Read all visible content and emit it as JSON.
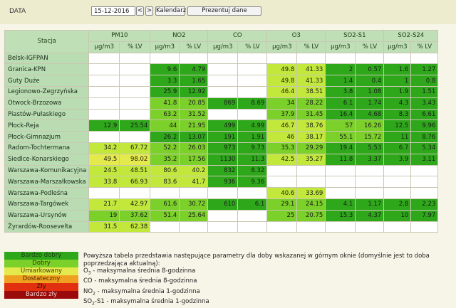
{
  "toolbar": {
    "label": "DATA",
    "date_value": "15-12-2016",
    "prev": "<",
    "next": ">",
    "calendar": "Kalendarz",
    "show": "Prezentuj dane"
  },
  "table": {
    "station_header": "Stacja",
    "pollutants": [
      "PM10",
      "NO2",
      "CO",
      "O3",
      "SO2-S1",
      "SO2-S24"
    ],
    "units": [
      "µg/m3",
      "% LV",
      "µg/m3",
      "% LV",
      "µg/m3",
      "% LV",
      "µg/m3",
      "% LV",
      "µg/m3",
      "% LV",
      "µg/m3",
      "% LV"
    ],
    "rows": [
      {
        "name": "Belsk-IGFPAN",
        "cells": [
          [
            "",
            "e"
          ],
          [
            "",
            "e"
          ],
          [
            "",
            "e"
          ],
          [
            "",
            "e"
          ],
          [
            "",
            "e"
          ],
          [
            "",
            "e"
          ],
          [
            "",
            "e"
          ],
          [
            "",
            "e"
          ],
          [
            "",
            "e"
          ],
          [
            "",
            "e"
          ],
          [
            "",
            "e"
          ],
          [
            "",
            "e"
          ]
        ]
      },
      {
        "name": "Granica-KPN",
        "cells": [
          [
            "",
            "e"
          ],
          [
            "",
            "e"
          ],
          [
            "9.6",
            "vg"
          ],
          [
            "4.79",
            "vg"
          ],
          [
            "",
            "e"
          ],
          [
            "",
            "e"
          ],
          [
            "49.8",
            "m"
          ],
          [
            "41.33",
            "m"
          ],
          [
            "2",
            "vg"
          ],
          [
            "0.57",
            "vg"
          ],
          [
            "1.6",
            "vg"
          ],
          [
            "1.27",
            "vg"
          ]
        ]
      },
      {
        "name": "Guty Duże",
        "cells": [
          [
            "",
            "e"
          ],
          [
            "",
            "e"
          ],
          [
            "3.3",
            "vg"
          ],
          [
            "1.65",
            "vg"
          ],
          [
            "",
            "e"
          ],
          [
            "",
            "e"
          ],
          [
            "49.8",
            "m"
          ],
          [
            "41.33",
            "m"
          ],
          [
            "1.4",
            "vg"
          ],
          [
            "0.4",
            "vg"
          ],
          [
            "1",
            "vg"
          ],
          [
            "0.8",
            "vg"
          ]
        ]
      },
      {
        "name": "Legionowo-Zegrzyńska",
        "cells": [
          [
            "",
            "e"
          ],
          [
            "",
            "e"
          ],
          [
            "25.9",
            "vg"
          ],
          [
            "12.92",
            "vg"
          ],
          [
            "",
            "e"
          ],
          [
            "",
            "e"
          ],
          [
            "46.4",
            "m"
          ],
          [
            "38.51",
            "m"
          ],
          [
            "3.8",
            "vg"
          ],
          [
            "1.08",
            "vg"
          ],
          [
            "1.9",
            "vg"
          ],
          [
            "1.51",
            "vg"
          ]
        ]
      },
      {
        "name": "Otwock-Brzozowa",
        "cells": [
          [
            "",
            "e"
          ],
          [
            "",
            "e"
          ],
          [
            "41.8",
            "g"
          ],
          [
            "20.85",
            "g"
          ],
          [
            "869",
            "vg"
          ],
          [
            "8.69",
            "vg"
          ],
          [
            "34",
            "g"
          ],
          [
            "28.22",
            "g"
          ],
          [
            "6.1",
            "vg"
          ],
          [
            "1.74",
            "vg"
          ],
          [
            "4.3",
            "vg"
          ],
          [
            "3.43",
            "vg"
          ]
        ]
      },
      {
        "name": "Piastów-Pułaskiego",
        "cells": [
          [
            "",
            "e"
          ],
          [
            "",
            "e"
          ],
          [
            "63.2",
            "g"
          ],
          [
            "31.52",
            "g"
          ],
          [
            "",
            "e"
          ],
          [
            "",
            "e"
          ],
          [
            "37.9",
            "g"
          ],
          [
            "31.45",
            "g"
          ],
          [
            "16.4",
            "vg"
          ],
          [
            "4.68",
            "vg"
          ],
          [
            "8.3",
            "vg"
          ],
          [
            "6.61",
            "vg"
          ]
        ]
      },
      {
        "name": "Płock-Reja",
        "cells": [
          [
            "12.9",
            "vg"
          ],
          [
            "25.54",
            "vg"
          ],
          [
            "44",
            "g"
          ],
          [
            "21.95",
            "g"
          ],
          [
            "499",
            "vg"
          ],
          [
            "4.99",
            "vg"
          ],
          [
            "46.7",
            "m"
          ],
          [
            "38.76",
            "m"
          ],
          [
            "57",
            "g"
          ],
          [
            "16.26",
            "g"
          ],
          [
            "12.5",
            "vg"
          ],
          [
            "9.96",
            "vg"
          ]
        ]
      },
      {
        "name": "Płock-Gimnazjum",
        "cells": [
          [
            "",
            "e"
          ],
          [
            "",
            "e"
          ],
          [
            "26.2",
            "vg"
          ],
          [
            "13.07",
            "vg"
          ],
          [
            "191",
            "vg"
          ],
          [
            "1.91",
            "vg"
          ],
          [
            "46",
            "m"
          ],
          [
            "38.17",
            "m"
          ],
          [
            "55.1",
            "g"
          ],
          [
            "15.72",
            "g"
          ],
          [
            "11",
            "vg"
          ],
          [
            "8.76",
            "vg"
          ]
        ]
      },
      {
        "name": "Radom-Tochtermana",
        "cells": [
          [
            "34.2",
            "m"
          ],
          [
            "67.72",
            "m"
          ],
          [
            "52.2",
            "g"
          ],
          [
            "26.03",
            "g"
          ],
          [
            "973",
            "vg"
          ],
          [
            "9.73",
            "vg"
          ],
          [
            "35.3",
            "g"
          ],
          [
            "29.29",
            "g"
          ],
          [
            "19.4",
            "vg"
          ],
          [
            "5.53",
            "vg"
          ],
          [
            "6.7",
            "vg"
          ],
          [
            "5.34",
            "vg"
          ]
        ]
      },
      {
        "name": "Siedlce-Konarskiego",
        "cells": [
          [
            "49.5",
            "s"
          ],
          [
            "98.02",
            "s"
          ],
          [
            "35.2",
            "g"
          ],
          [
            "17.56",
            "g"
          ],
          [
            "1130",
            "vg"
          ],
          [
            "11.3",
            "vg"
          ],
          [
            "42.5",
            "m"
          ],
          [
            "35.27",
            "m"
          ],
          [
            "11.8",
            "vg"
          ],
          [
            "3.37",
            "vg"
          ],
          [
            "3.9",
            "vg"
          ],
          [
            "3.11",
            "vg"
          ]
        ]
      },
      {
        "name": "Warszawa-Komunikacyjna",
        "cells": [
          [
            "24.5",
            "m"
          ],
          [
            "48.51",
            "m"
          ],
          [
            "80.6",
            "m"
          ],
          [
            "40.2",
            "m"
          ],
          [
            "832",
            "vg"
          ],
          [
            "8.32",
            "vg"
          ],
          [
            "",
            "e"
          ],
          [
            "",
            "e"
          ],
          [
            "",
            "e"
          ],
          [
            "",
            "e"
          ],
          [
            "",
            "e"
          ],
          [
            "",
            "e"
          ]
        ]
      },
      {
        "name": "Warszawa-Marszałkowska",
        "cells": [
          [
            "33.8",
            "m"
          ],
          [
            "66.93",
            "m"
          ],
          [
            "83.6",
            "m"
          ],
          [
            "41.7",
            "m"
          ],
          [
            "936",
            "vg"
          ],
          [
            "9.36",
            "vg"
          ],
          [
            "",
            "e"
          ],
          [
            "",
            "e"
          ],
          [
            "",
            "e"
          ],
          [
            "",
            "e"
          ],
          [
            "",
            "e"
          ],
          [
            "",
            "e"
          ]
        ]
      },
      {
        "name": "Warszawa-Podleśna",
        "cells": [
          [
            "",
            "e"
          ],
          [
            "",
            "e"
          ],
          [
            "",
            "e"
          ],
          [
            "",
            "e"
          ],
          [
            "",
            "e"
          ],
          [
            "",
            "e"
          ],
          [
            "40.6",
            "m"
          ],
          [
            "33.69",
            "m"
          ],
          [
            "",
            "e"
          ],
          [
            "",
            "e"
          ],
          [
            "",
            "e"
          ],
          [
            "",
            "e"
          ]
        ]
      },
      {
        "name": "Warszawa-Targówek",
        "cells": [
          [
            "21.7",
            "m"
          ],
          [
            "42.97",
            "m"
          ],
          [
            "61.6",
            "g"
          ],
          [
            "30.72",
            "g"
          ],
          [
            "610",
            "vg"
          ],
          [
            "6.1",
            "vg"
          ],
          [
            "29.1",
            "g"
          ],
          [
            "24.15",
            "g"
          ],
          [
            "4.1",
            "vg"
          ],
          [
            "1.17",
            "vg"
          ],
          [
            "2.8",
            "vg"
          ],
          [
            "2.23",
            "vg"
          ]
        ]
      },
      {
        "name": "Warszawa-Ursynów",
        "cells": [
          [
            "19",
            "g"
          ],
          [
            "37.62",
            "g"
          ],
          [
            "51.4",
            "g"
          ],
          [
            "25.64",
            "g"
          ],
          [
            "",
            "e"
          ],
          [
            "",
            "e"
          ],
          [
            "25",
            "g"
          ],
          [
            "20.75",
            "g"
          ],
          [
            "15.3",
            "vg"
          ],
          [
            "4.37",
            "vg"
          ],
          [
            "10",
            "vg"
          ],
          [
            "7.97",
            "vg"
          ]
        ]
      },
      {
        "name": "Żyrardów-Roosevelta",
        "cells": [
          [
            "31.5",
            "m"
          ],
          [
            "62.38",
            "m"
          ],
          [
            "",
            "e"
          ],
          [
            "",
            "e"
          ],
          [
            "",
            "e"
          ],
          [
            "",
            "e"
          ],
          [
            "",
            "e"
          ],
          [
            "",
            "e"
          ],
          [
            "",
            "e"
          ],
          [
            "",
            "e"
          ],
          [
            "",
            "e"
          ],
          [
            "",
            "e"
          ]
        ]
      }
    ]
  },
  "legend": [
    {
      "label": "Bardzo dobry",
      "color": "#2ea81a",
      "text_color": "#1c3a12"
    },
    {
      "label": "Dobry",
      "color": "#7cd02a",
      "text_color": "#2a3a10"
    },
    {
      "label": "Umiarkowany",
      "color": "#e5ea4c",
      "text_color": "#4a4010"
    },
    {
      "label": "Dostateczny",
      "color": "#f0a020",
      "text_color": "#4a2a00"
    },
    {
      "label": "Zły",
      "color": "#e03010",
      "text_color": "#3a0a00"
    },
    {
      "label": "Bardzo zły",
      "color": "#9a0a0a",
      "text_color": "#f0d0d0"
    }
  ],
  "description": {
    "intro": "Powyższa tabela przedstawia następujące parametry dla doby wskazanej w górnym oknie (domyślnie jest to doba poprzedzająca aktualną):",
    "items": [
      {
        "sym": "O",
        "sub": "3",
        "rest": " - maksymalna średnia 8-godzinna"
      },
      {
        "sym": "CO",
        "sub": "",
        "rest": " - maksymalna średnia 8-godzinna"
      },
      {
        "sym": "NO",
        "sub": "2",
        "rest": " - maksymalna średnia 1-godzinna"
      },
      {
        "sym": "SO",
        "sub": "2",
        "rest": "-S1 - maksymalna średnia 1-godzinna"
      }
    ]
  }
}
